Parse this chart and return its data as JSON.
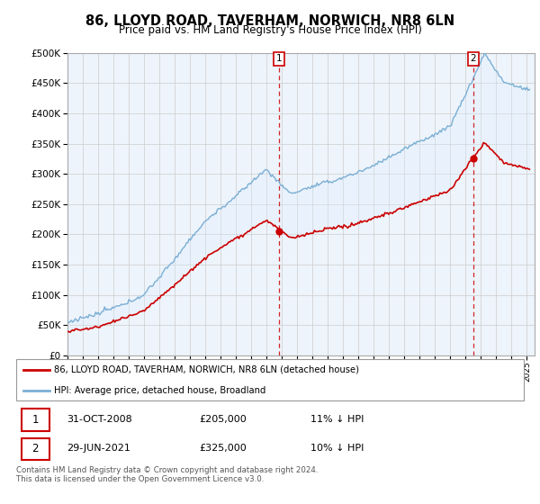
{
  "title": "86, LLOYD ROAD, TAVERHAM, NORWICH, NR8 6LN",
  "subtitle": "Price paid vs. HM Land Registry's House Price Index (HPI)",
  "yticks": [
    0,
    50000,
    100000,
    150000,
    200000,
    250000,
    300000,
    350000,
    400000,
    450000,
    500000
  ],
  "ylim": [
    0,
    500000
  ],
  "xlim_min": 1995,
  "xlim_max": 2025.5,
  "legend_label_red": "86, LLOYD ROAD, TAVERHAM, NORWICH, NR8 6LN (detached house)",
  "legend_label_blue": "HPI: Average price, detached house, Broadland",
  "transaction1_date": "31-OCT-2008",
  "transaction1_price": "£205,000",
  "transaction1_hpi": "11% ↓ HPI",
  "transaction1_year": 2008.833,
  "transaction1_value": 205000,
  "transaction2_date": "29-JUN-2021",
  "transaction2_price": "£325,000",
  "transaction2_hpi": "10% ↓ HPI",
  "transaction2_year": 2021.5,
  "transaction2_value": 325000,
  "footnote": "Contains HM Land Registry data © Crown copyright and database right 2024.\nThis data is licensed under the Open Government Licence v3.0.",
  "red_color": "#cc0000",
  "blue_color": "#7bafd4",
  "fill_color": "#ddeeff",
  "grid_color": "#cccccc",
  "background_color": "#ffffff"
}
